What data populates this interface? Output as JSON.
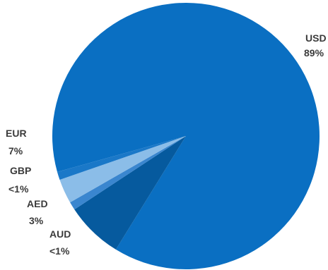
{
  "chart_data": {
    "type": "pie",
    "title": "",
    "legend": "none",
    "slices": [
      {
        "name": "USD",
        "value_label": "89%",
        "value": 89.0,
        "color": "#0a6fc2"
      },
      {
        "name": "EUR",
        "value_label": "7%",
        "value": 7.0,
        "color": "#065a9e"
      },
      {
        "name": "GBP",
        "value_label": "<1%",
        "value": 1.0,
        "color": "#3a86cf"
      },
      {
        "name": "AED",
        "value_label": "3%",
        "value": 3.0,
        "color": "#8bbde8"
      },
      {
        "name": "AUD",
        "value_label": "<1%",
        "value": 1.0,
        "color": "#1a78c8"
      }
    ]
  }
}
